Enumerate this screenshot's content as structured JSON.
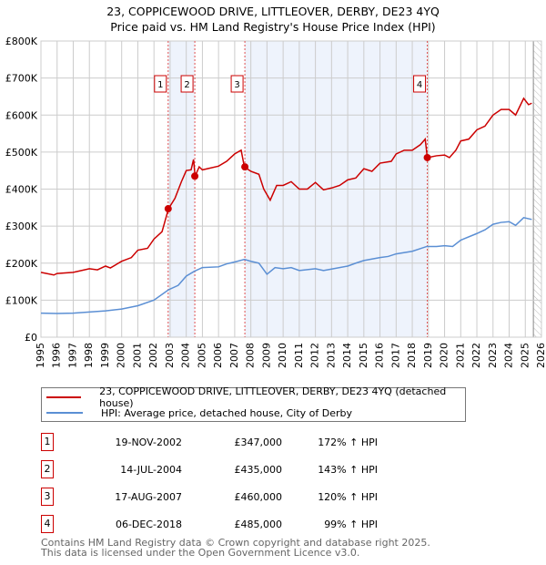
{
  "title": "23, COPPICEWOOD DRIVE, LITTLEOVER, DERBY, DE23 4YQ",
  "subtitle": "Price paid vs. HM Land Registry's House Price Index (HPI)",
  "chart_data": {
    "type": "line",
    "title": "23, COPPICEWOOD DRIVE, LITTLEOVER, DERBY, DE23 4YQ",
    "subtitle": "Price paid vs. HM Land Registry's House Price Index (HPI)",
    "xlim": [
      1995,
      2026
    ],
    "ylim": [
      0,
      800000
    ],
    "yticks": [
      {
        "v": 0,
        "l": "£0"
      },
      {
        "v": 100000,
        "l": "£100K"
      },
      {
        "v": 200000,
        "l": "£200K"
      },
      {
        "v": 300000,
        "l": "£300K"
      },
      {
        "v": 400000,
        "l": "£400K"
      },
      {
        "v": 500000,
        "l": "£500K"
      },
      {
        "v": 600000,
        "l": "£600K"
      },
      {
        "v": 700000,
        "l": "£700K"
      },
      {
        "v": 800000,
        "l": "£800K"
      }
    ],
    "xticks": [
      "1995",
      "1996",
      "1997",
      "1998",
      "1999",
      "2000",
      "2001",
      "2002",
      "2003",
      "2004",
      "2005",
      "2006",
      "2007",
      "2008",
      "2009",
      "2010",
      "2011",
      "2012",
      "2013",
      "2014",
      "2015",
      "2016",
      "2017",
      "2018",
      "2019",
      "2020",
      "2021",
      "2022",
      "2023",
      "2024",
      "2025",
      "2026"
    ],
    "grid": true,
    "colors": {
      "price": "#cc0000",
      "hpi": "#5b8fd4",
      "shade": "#eef3fc",
      "marker_line": "#e05050"
    },
    "series": [
      {
        "name": "23, COPPICEWOOD DRIVE, LITTLEOVER, DERBY, DE23 4YQ (detached house)",
        "points": [
          [
            1995,
            175
          ],
          [
            1995.8,
            168
          ],
          [
            1996,
            172
          ],
          [
            1997,
            175
          ],
          [
            1998,
            185
          ],
          [
            1998.5,
            182
          ],
          [
            1999,
            192
          ],
          [
            1999.3,
            187
          ],
          [
            2000,
            205
          ],
          [
            2000.6,
            215
          ],
          [
            2001,
            235
          ],
          [
            2001.6,
            240
          ],
          [
            2002,
            265
          ],
          [
            2002.5,
            285
          ],
          [
            2002.9,
            347
          ],
          [
            2003.3,
            375
          ],
          [
            2003.7,
            420
          ],
          [
            2004,
            450
          ],
          [
            2004.3,
            452
          ],
          [
            2004.45,
            480
          ],
          [
            2004.55,
            435
          ],
          [
            2004.8,
            460
          ],
          [
            2005,
            452
          ],
          [
            2006,
            462
          ],
          [
            2006.5,
            475
          ],
          [
            2007,
            495
          ],
          [
            2007.4,
            505
          ],
          [
            2007.6,
            460
          ],
          [
            2008,
            448
          ],
          [
            2008.5,
            440
          ],
          [
            2008.8,
            400
          ],
          [
            2009.2,
            370
          ],
          [
            2009.6,
            410
          ],
          [
            2010,
            410
          ],
          [
            2010.5,
            420
          ],
          [
            2011,
            400
          ],
          [
            2011.5,
            400
          ],
          [
            2012,
            418
          ],
          [
            2012.5,
            398
          ],
          [
            2013,
            403
          ],
          [
            2013.5,
            410
          ],
          [
            2014,
            425
          ],
          [
            2014.5,
            430
          ],
          [
            2015,
            455
          ],
          [
            2015.5,
            448
          ],
          [
            2016,
            470
          ],
          [
            2016.7,
            475
          ],
          [
            2017,
            495
          ],
          [
            2017.5,
            505
          ],
          [
            2018,
            505
          ],
          [
            2018.5,
            520
          ],
          [
            2018.8,
            535
          ],
          [
            2018.93,
            485
          ],
          [
            2019.5,
            490
          ],
          [
            2020,
            492
          ],
          [
            2020.3,
            485
          ],
          [
            2020.7,
            505
          ],
          [
            2021,
            530
          ],
          [
            2021.5,
            535
          ],
          [
            2022,
            560
          ],
          [
            2022.5,
            570
          ],
          [
            2023,
            600
          ],
          [
            2023.5,
            615
          ],
          [
            2024,
            615
          ],
          [
            2024.4,
            600
          ],
          [
            2024.9,
            645
          ],
          [
            2025.2,
            628
          ],
          [
            2025.4,
            632
          ]
        ]
      },
      {
        "name": "HPI: Average price, detached house, City of Derby",
        "points": [
          [
            1995,
            65
          ],
          [
            1996,
            64
          ],
          [
            1997,
            65
          ],
          [
            1998,
            68
          ],
          [
            1999,
            71
          ],
          [
            2000,
            76
          ],
          [
            2001,
            85
          ],
          [
            2002,
            100
          ],
          [
            2002.9,
            128
          ],
          [
            2003.5,
            140
          ],
          [
            2004,
            165
          ],
          [
            2004.5,
            178
          ],
          [
            2005,
            188
          ],
          [
            2006,
            190
          ],
          [
            2006.5,
            198
          ],
          [
            2007,
            203
          ],
          [
            2007.6,
            210
          ],
          [
            2008,
            205
          ],
          [
            2008.5,
            200
          ],
          [
            2009,
            170
          ],
          [
            2009.5,
            188
          ],
          [
            2010,
            185
          ],
          [
            2010.5,
            188
          ],
          [
            2011,
            180
          ],
          [
            2012,
            185
          ],
          [
            2012.5,
            180
          ],
          [
            2013,
            184
          ],
          [
            2014,
            192
          ],
          [
            2014.5,
            200
          ],
          [
            2015,
            207
          ],
          [
            2016,
            215
          ],
          [
            2016.5,
            218
          ],
          [
            2017,
            225
          ],
          [
            2018,
            232
          ],
          [
            2018.9,
            245
          ],
          [
            2019.5,
            245
          ],
          [
            2020,
            247
          ],
          [
            2020.5,
            245
          ],
          [
            2021,
            262
          ],
          [
            2022,
            280
          ],
          [
            2022.5,
            290
          ],
          [
            2023,
            305
          ],
          [
            2023.5,
            310
          ],
          [
            2024,
            312
          ],
          [
            2024.4,
            302
          ],
          [
            2024.9,
            323
          ],
          [
            2025.4,
            318
          ]
        ]
      }
    ],
    "sales": [
      {
        "n": "1",
        "x": 2002.88,
        "price": 347000,
        "date": "19-NOV-2002",
        "price_label": "£347,000",
        "hpi": "172% ↑ HPI"
      },
      {
        "n": "2",
        "x": 2004.53,
        "price": 435000,
        "date": "14-JUL-2004",
        "price_label": "£435,000",
        "hpi": "143% ↑ HPI"
      },
      {
        "n": "3",
        "x": 2007.63,
        "price": 460000,
        "date": "17-AUG-2007",
        "price_label": "£460,000",
        "hpi": "120% ↑ HPI"
      },
      {
        "n": "4",
        "x": 2018.93,
        "price": 485000,
        "date": "06-DEC-2018",
        "price_label": "£485,000",
        "hpi": "99% ↑ HPI"
      }
    ],
    "data_end": 2025.5
  },
  "legend": {
    "price": "23, COPPICEWOOD DRIVE, LITTLEOVER, DERBY, DE23 4YQ (detached house)",
    "hpi": "HPI: Average price, detached house, City of Derby"
  },
  "footer": [
    "Contains HM Land Registry data © Crown copyright and database right 2025.",
    "This data is licensed under the Open Government Licence v3.0."
  ]
}
